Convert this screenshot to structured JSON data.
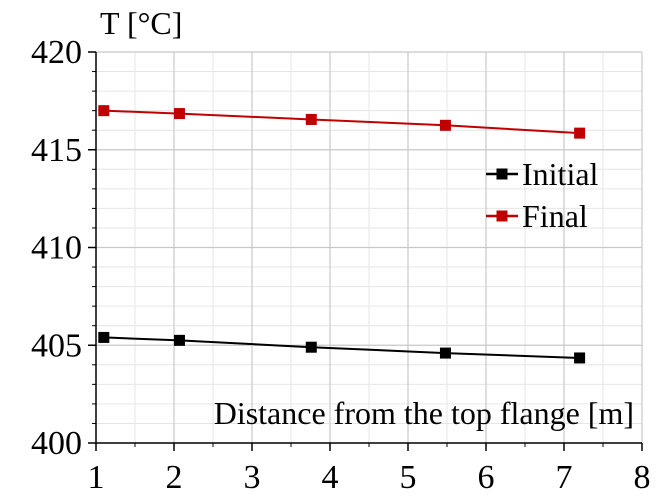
{
  "chart_data": {
    "type": "line",
    "ylabel": "T [°C]",
    "xlabel": "Distance from the top flange [m]",
    "xlim": [
      1,
      8
    ],
    "ylim": [
      400,
      420
    ],
    "x_ticks": [
      1,
      2,
      3,
      4,
      5,
      6,
      7,
      8
    ],
    "y_ticks": [
      400,
      405,
      410,
      415,
      420
    ],
    "grid": true,
    "legend_position": "right",
    "series": [
      {
        "name": "Initial",
        "color": "#000000",
        "marker": "square",
        "x": [
          1.1,
          2.07,
          3.76,
          5.48,
          7.2
        ],
        "y": [
          405.4,
          405.25,
          404.9,
          404.6,
          404.35
        ]
      },
      {
        "name": "Final",
        "color": "#c00000",
        "marker": "square",
        "x": [
          1.1,
          2.07,
          3.76,
          5.48,
          7.2
        ],
        "y": [
          417.0,
          416.85,
          416.55,
          416.25,
          415.85
        ]
      }
    ]
  }
}
